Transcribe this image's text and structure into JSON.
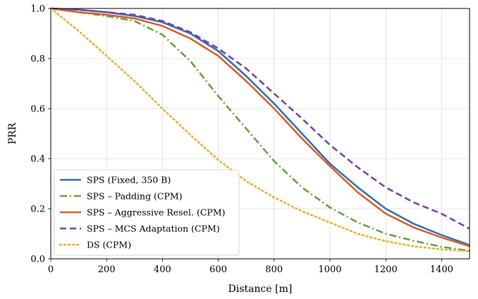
{
  "chart_data": {
    "type": "line",
    "title": "",
    "xlabel": "Distance [m]",
    "ylabel": "PRR",
    "xlim": [
      0,
      1500
    ],
    "ylim": [
      0,
      1.0
    ],
    "xticks": [
      0,
      200,
      400,
      600,
      800,
      1000,
      1200,
      1400
    ],
    "yticks": [
      0.0,
      0.2,
      0.4,
      0.6,
      0.8,
      1.0
    ],
    "xtick_labels": [
      "0",
      "200",
      "400",
      "600",
      "800",
      "1000",
      "1200",
      "1400"
    ],
    "ytick_labels": [
      "0.0",
      "0.2",
      "0.4",
      "0.6",
      "0.8",
      "1.0"
    ],
    "grid": true,
    "legend_position": "bottom-left",
    "x": [
      0,
      100,
      200,
      300,
      400,
      500,
      600,
      700,
      800,
      900,
      1000,
      1100,
      1200,
      1300,
      1400,
      1500
    ],
    "series": [
      {
        "name": "SPS (Fixed, 350 B)",
        "color": "#3a6fb0",
        "style": "solid",
        "values": [
          1.0,
          0.995,
          0.985,
          0.97,
          0.945,
          0.9,
          0.83,
          0.73,
          0.62,
          0.5,
          0.38,
          0.285,
          0.2,
          0.14,
          0.095,
          0.055
        ]
      },
      {
        "name": "SPS – Padding (CPM)",
        "color": "#6aa040",
        "style": "dashdot",
        "values": [
          1.0,
          0.985,
          0.97,
          0.95,
          0.895,
          0.79,
          0.65,
          0.52,
          0.39,
          0.285,
          0.205,
          0.145,
          0.1,
          0.072,
          0.048,
          0.032
        ]
      },
      {
        "name": "SPS – Aggressive Resel. (CPM)",
        "color": "#d9622c",
        "style": "solid",
        "values": [
          1.0,
          0.985,
          0.975,
          0.96,
          0.93,
          0.88,
          0.81,
          0.71,
          0.6,
          0.48,
          0.37,
          0.265,
          0.18,
          0.125,
          0.085,
          0.05
        ]
      },
      {
        "name": "SPS – MCS Adaptation (CPM)",
        "color": "#7b45a0",
        "style": "dashed",
        "values": [
          1.0,
          0.995,
          0.985,
          0.975,
          0.95,
          0.905,
          0.84,
          0.76,
          0.66,
          0.56,
          0.455,
          0.365,
          0.285,
          0.225,
          0.18,
          0.12
        ]
      },
      {
        "name": "DS (CPM)",
        "color": "#e8b13a",
        "style": "dotted",
        "values": [
          1.0,
          0.91,
          0.81,
          0.71,
          0.6,
          0.495,
          0.395,
          0.31,
          0.245,
          0.19,
          0.145,
          0.1,
          0.07,
          0.05,
          0.038,
          0.03
        ]
      }
    ]
  }
}
